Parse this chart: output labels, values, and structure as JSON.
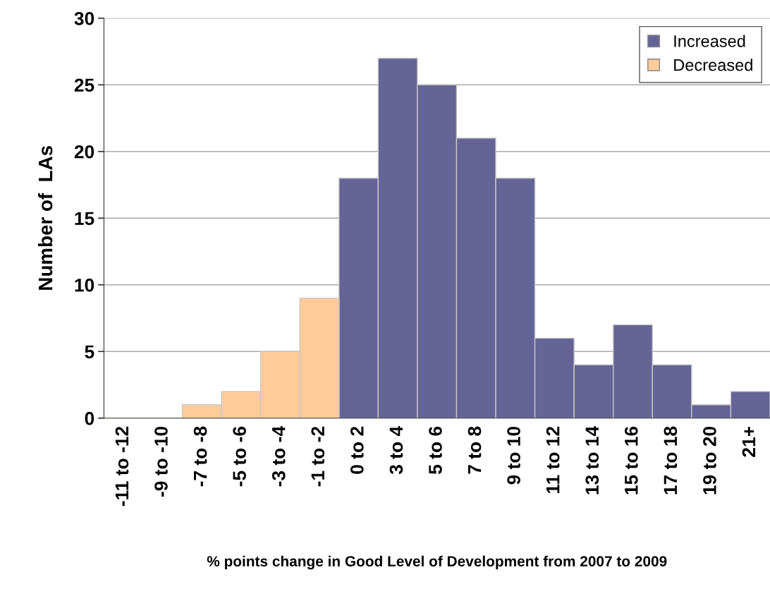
{
  "chart_data": {
    "type": "bar",
    "xlabel": "% points change in Good Level of Development from 2007 to 2009",
    "ylabel": "Number of  LAs",
    "categories": [
      "-11 to -12",
      "-9 to -10",
      "-7 to -8",
      "-5 to -6",
      "-3 to -4",
      "-1 to -2",
      "0 to 2",
      "3 to 4",
      "5 to 6",
      "7 to 8",
      "9 to 10",
      "11 to 12",
      "13 to 14",
      "15 to 16",
      "17 to 18",
      "19 to 20",
      "21+"
    ],
    "series": [
      {
        "name": "Increased",
        "color": "#646496",
        "values": [
          null,
          null,
          null,
          null,
          null,
          null,
          18,
          27,
          25,
          21,
          18,
          6,
          4,
          7,
          4,
          1,
          2
        ]
      },
      {
        "name": "Decreased",
        "color": "#ffcc99",
        "values": [
          0,
          0,
          1,
          2,
          5,
          9,
          null,
          null,
          null,
          null,
          null,
          null,
          null,
          null,
          null,
          null,
          null
        ]
      }
    ],
    "ylim": [
      0,
      30
    ],
    "yticks": [
      0,
      5,
      10,
      15,
      20,
      25,
      30
    ],
    "grid": "y",
    "legend": "top right"
  }
}
